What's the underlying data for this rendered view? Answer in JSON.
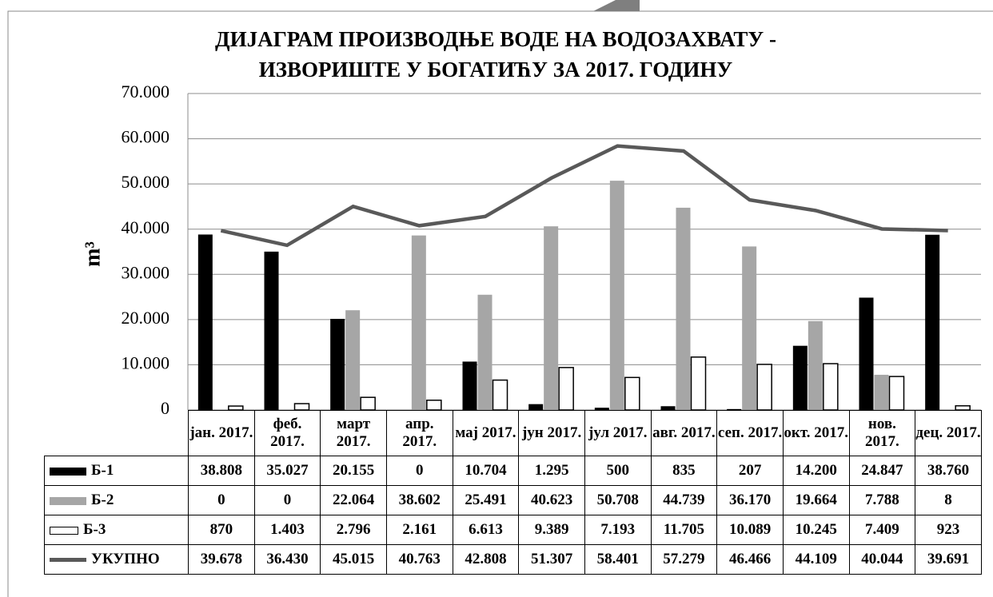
{
  "chart_data": {
    "type": "bar",
    "title": [
      "ДИЈАГРАМ ПРОИЗВОДЊЕ ВОДЕ НА ВОДОЗАХВАТУ -",
      "ИЗВОРИШТЕ У БОГАТИЋУ  ЗА 2017. ГОДИНУ"
    ],
    "y_label": "m³",
    "categories": [
      "јан. 2017.",
      "феб. 2017.",
      "март 2017.",
      "апр. 2017.",
      "мај 2017.",
      "јун 2017.",
      "јул 2017.",
      "авг. 2017.",
      "сеп. 2017.",
      "окт. 2017.",
      "нов. 2017.",
      "дец. 2017."
    ],
    "ylim": [
      0,
      70000
    ],
    "yticks": [
      0,
      {
        "value": 10000,
        "label": "10.000"
      },
      {
        "value": 20000,
        "label": "20.000"
      },
      {
        "value": 30000,
        "label": "30.000"
      },
      {
        "value": 40000,
        "label": "40.000"
      },
      {
        "value": 50000,
        "label": "50.000"
      },
      {
        "value": 60000,
        "label": "60.000"
      },
      {
        "value": 70000,
        "label": "70.000"
      }
    ],
    "grid": true,
    "series": [
      {
        "name": "Б-1",
        "type": "bar",
        "color": "#000000",
        "values": [
          38808,
          35027,
          20155,
          0,
          10704,
          1295,
          500,
          835,
          207,
          14200,
          24847,
          38760
        ],
        "value_labels": [
          "38.808",
          "35.027",
          "20.155",
          "0",
          "10.704",
          "1.295",
          "500",
          "835",
          "207",
          "14.200",
          "24.847",
          "38.760"
        ]
      },
      {
        "name": "Б-2",
        "type": "bar",
        "color": "#a6a6a6",
        "values": [
          0,
          0,
          22064,
          38602,
          25491,
          40623,
          50708,
          44739,
          36170,
          19664,
          7788,
          8
        ],
        "value_labels": [
          "0",
          "0",
          "22.064",
          "38.602",
          "25.491",
          "40.623",
          "50.708",
          "44.739",
          "36.170",
          "19.664",
          "7.788",
          "8"
        ]
      },
      {
        "name": "Б-3",
        "type": "bar",
        "color": "#ffffff",
        "values": [
          870,
          1403,
          2796,
          2161,
          6613,
          9389,
          7193,
          11705,
          10089,
          10245,
          7409,
          923
        ],
        "value_labels": [
          "870",
          "1.403",
          "2.796",
          "2.161",
          "6.613",
          "9.389",
          "7.193",
          "11.705",
          "10.089",
          "10.245",
          "7.409",
          "923"
        ]
      },
      {
        "name": "УКУПНО",
        "type": "line",
        "color": "#595959",
        "values": [
          39678,
          36430,
          45015,
          40763,
          42808,
          51307,
          58401,
          57279,
          46466,
          44109,
          40044,
          39691
        ],
        "value_labels": [
          "39.678",
          "36.430",
          "45.015",
          "40.763",
          "42.808",
          "51.307",
          "58.401",
          "57.279",
          "46.466",
          "44.109",
          "40.044",
          "39.691"
        ]
      }
    ]
  }
}
